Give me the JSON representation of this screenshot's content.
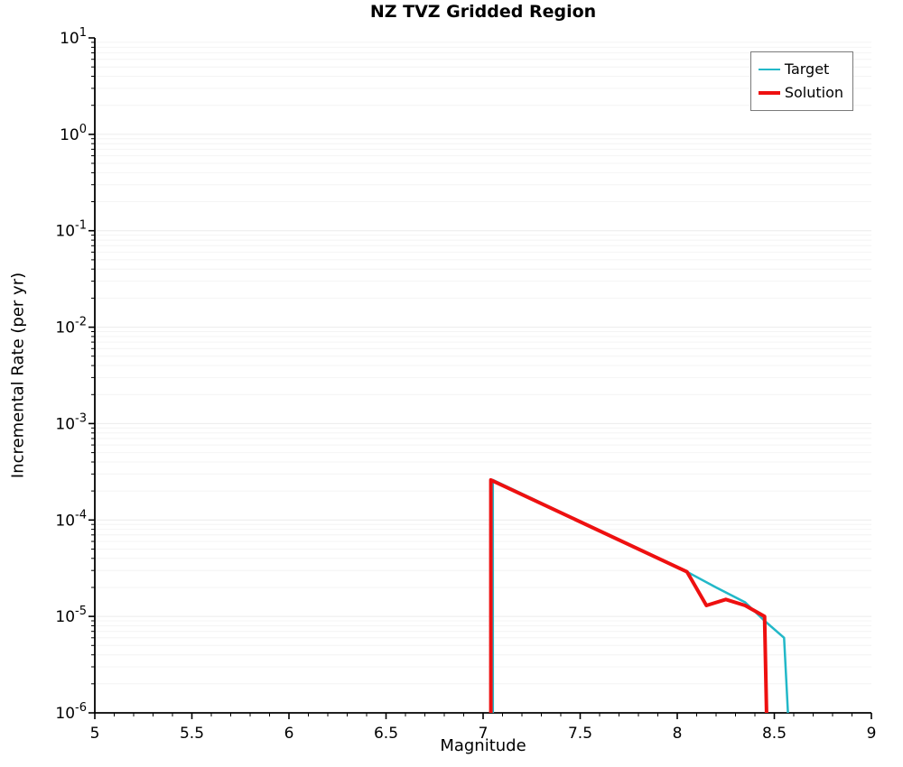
{
  "title": "NZ TVZ Gridded Region",
  "axes": {
    "xlabel": "Magnitude",
    "ylabel": "Incremental Rate (per yr)",
    "x_tick_values": [
      5,
      5.5,
      6,
      6.5,
      7,
      7.5,
      8,
      8.5,
      9
    ],
    "x_tick_labels": [
      "5",
      "5.5",
      "6",
      "6.5",
      "7",
      "7.5",
      "8",
      "8.5",
      "9"
    ],
    "y_tick_exponents": [
      1,
      0,
      -1,
      -2,
      -3,
      -4,
      -5,
      -6
    ]
  },
  "legend": {
    "entries": [
      {
        "label": "Target",
        "color": "#22b8c8",
        "line_width": 2.5
      },
      {
        "label": "Solution",
        "color": "#ee1010",
        "line_width": 4
      }
    ]
  },
  "chart_data": {
    "type": "line",
    "title": "NZ TVZ Gridded Region",
    "xlabel": "Magnitude",
    "ylabel": "Incremental Rate (per yr)",
    "xscale": "linear",
    "yscale": "log",
    "xlim": [
      5,
      9
    ],
    "ylim": [
      1e-06,
      10
    ],
    "grid": {
      "horizontal_log_gridlines": true,
      "minor_color": "#f4f4f4",
      "major_color": "#ececec"
    },
    "legend_position": "upper right",
    "series": [
      {
        "name": "Target",
        "color": "#22b8c8",
        "width": 2.5,
        "points": [
          [
            7.05,
            1e-07
          ],
          [
            7.05,
            0.00026
          ],
          [
            8.05,
            2.9e-05
          ],
          [
            8.2,
            2e-05
          ],
          [
            8.35,
            1.4e-05
          ],
          [
            8.45,
            9e-06
          ],
          [
            8.55,
            6e-06
          ],
          [
            8.57,
            1e-07
          ]
        ]
      },
      {
        "name": "Solution",
        "color": "#ee1010",
        "width": 4,
        "points": [
          [
            7.04,
            1e-07
          ],
          [
            7.04,
            0.00026
          ],
          [
            8.05,
            2.9e-05
          ],
          [
            8.15,
            1.3e-05
          ],
          [
            8.25,
            1.5e-05
          ],
          [
            8.35,
            1.3e-05
          ],
          [
            8.45,
            1e-05
          ],
          [
            8.46,
            1e-07
          ]
        ]
      }
    ]
  }
}
